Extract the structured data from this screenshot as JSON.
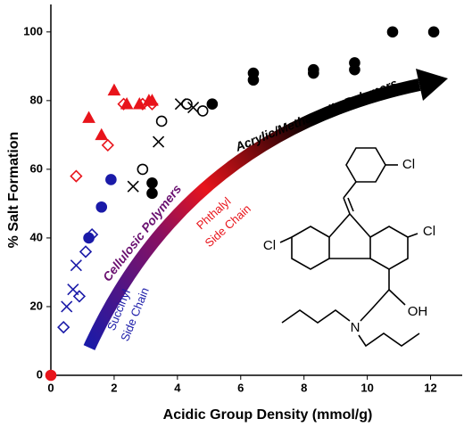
{
  "chart_data": {
    "type": "scatter",
    "xlabel": "Acidic Group Density (mmol/g)",
    "ylabel": "% Salt Formation",
    "xlim": [
      0,
      13
    ],
    "xticks": [
      0,
      2,
      4,
      6,
      8,
      10,
      12
    ],
    "ylim": [
      0,
      108
    ],
    "yticks": [
      0,
      20,
      40,
      60,
      80,
      100
    ],
    "series": [
      {
        "color": "#000000",
        "marker": "circle",
        "filled": true,
        "x": [
          10.8,
          12.1,
          9.6,
          9.6,
          8.3,
          8.3,
          6.4,
          6.4,
          5.1,
          3.2,
          3.2
        ],
        "values": [
          100,
          100,
          91,
          89,
          89,
          88,
          88,
          86,
          79,
          56,
          53
        ]
      },
      {
        "color": "#000000",
        "marker": "circle",
        "filled": false,
        "x": [
          2.9,
          3.5,
          4.3,
          4.8
        ],
        "values": [
          60,
          74,
          79,
          77
        ]
      },
      {
        "color": "#000000",
        "marker": "x",
        "filled": false,
        "x": [
          2.6,
          3.4,
          4.1,
          4.5
        ],
        "values": [
          55,
          68,
          79,
          78
        ]
      },
      {
        "color": "#1a1aa8",
        "marker": "circle",
        "filled": true,
        "x": [
          1.2,
          1.6,
          1.9
        ],
        "values": [
          40,
          49,
          57
        ]
      },
      {
        "color": "#1a1aa8",
        "marker": "diamond",
        "filled": false,
        "x": [
          0.4,
          0.9,
          1.1,
          1.3
        ],
        "values": [
          14,
          23,
          36,
          41
        ]
      },
      {
        "color": "#1a1aa8",
        "marker": "x",
        "filled": false,
        "x": [
          0.5,
          0.7,
          0.8
        ],
        "values": [
          20,
          25,
          32
        ]
      },
      {
        "color": "#e8141b",
        "marker": "triangle",
        "filled": true,
        "x": [
          1.2,
          1.6,
          2.0,
          2.4,
          2.8,
          3.1,
          3.2
        ],
        "values": [
          75,
          70,
          83,
          79,
          79,
          80,
          80
        ]
      },
      {
        "color": "#e8141b",
        "marker": "diamond",
        "filled": false,
        "x": [
          0.8,
          1.8,
          2.3,
          2.9,
          3.2
        ],
        "values": [
          58,
          67,
          79,
          79,
          79
        ]
      },
      {
        "color": "#e8141b",
        "marker": "circle",
        "filled": true,
        "x": [
          0
        ],
        "values": [
          0
        ]
      }
    ],
    "annotations": [
      "Acrylic/Methacrylic Polymers",
      "Cellulosic Polymers",
      "Phthalyl",
      "Side Chain",
      "Succinyl",
      "Side Chain"
    ],
    "structure_labels": [
      "Cl",
      "Cl",
      "Cl",
      "N",
      "OH"
    ]
  }
}
